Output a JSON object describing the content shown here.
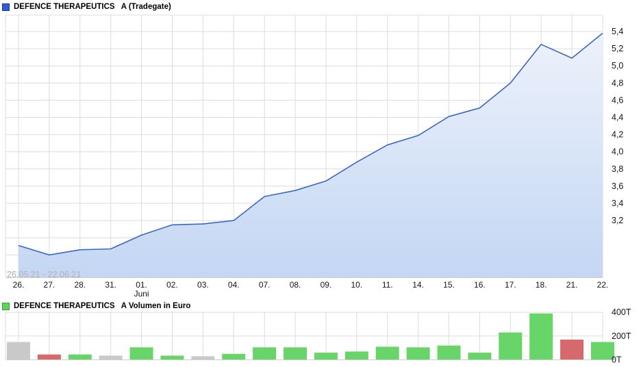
{
  "price_panel": {
    "title": "DEFENCE THERAPEUTICS   A (Tradegate)",
    "watermark": "26.05.21 - 22.06.21",
    "swatch_fill": "#2E5BD7",
    "swatch_border": "#1A3A99"
  },
  "volume_panel": {
    "title": "DEFENCE THERAPEUTICS   A Volumen in Euro",
    "swatch_fill": "#5FD35F",
    "swatch_border": "#2FA52F"
  },
  "chart_data": [
    {
      "type": "area",
      "title": "DEFENCE THERAPEUTICS A (Tradegate)",
      "x": [
        "26.",
        "27.",
        "28.",
        "31.",
        "01.",
        "02.",
        "03.",
        "04.",
        "07.",
        "08.",
        "09.",
        "10.",
        "11.",
        "14.",
        "15.",
        "16.",
        "17.",
        "18.",
        "21.",
        "22."
      ],
      "month_label": {
        "index": 4,
        "text": "Juni"
      },
      "values": [
        2.91,
        2.8,
        2.86,
        2.87,
        3.03,
        3.15,
        3.16,
        3.2,
        3.48,
        3.55,
        3.66,
        3.88,
        4.08,
        4.19,
        4.41,
        4.51,
        4.8,
        5.25,
        5.09,
        5.38
      ],
      "ylim": [
        2.6,
        5.58
      ],
      "y_ticks": [
        {
          "v": 5.4,
          "label": "5,4"
        },
        {
          "v": 5.2,
          "label": "5,2"
        },
        {
          "v": 5.0,
          "label": "5,0"
        },
        {
          "v": 4.8,
          "label": "4,8"
        },
        {
          "v": 4.6,
          "label": "4,6"
        },
        {
          "v": 4.4,
          "label": "4,4"
        },
        {
          "v": 4.2,
          "label": "4,2"
        },
        {
          "v": 4.0,
          "label": "4,0"
        },
        {
          "v": 3.8,
          "label": "3,8"
        },
        {
          "v": 3.6,
          "label": "3,6"
        },
        {
          "v": 3.4,
          "label": "3,4"
        },
        {
          "v": 3.2,
          "label": "3,2"
        }
      ],
      "grid": true,
      "legend_position": "top-left",
      "line_color": "#3867C8",
      "fill_top": "#EDF2FB",
      "fill_bottom": "#C3D6F3",
      "grid_color": "#dcdcdc"
    },
    {
      "type": "bar",
      "title": "DEFENCE THERAPEUTICS A Volumen in Euro",
      "unit": "T (thousand Euro)",
      "categories": [
        "26.",
        "27.",
        "28.",
        "31.",
        "01.",
        "02.",
        "03.",
        "04.",
        "07.",
        "08.",
        "09.",
        "10.",
        "11.",
        "14.",
        "15.",
        "16.",
        "17.",
        "18.",
        "21.",
        "22."
      ],
      "values_T": [
        150,
        45,
        45,
        35,
        105,
        35,
        30,
        50,
        105,
        105,
        60,
        70,
        110,
        105,
        120,
        60,
        230,
        390,
        170,
        150
      ],
      "bar_colors": [
        "gray",
        "red",
        "green",
        "gray",
        "green",
        "green",
        "gray",
        "green",
        "green",
        "green",
        "green",
        "green",
        "green",
        "green",
        "green",
        "green",
        "green",
        "green",
        "red",
        "green"
      ],
      "palette": {
        "green": "#68D568",
        "red": "#D5696B",
        "gray": "#C9C9C9"
      },
      "ylim": [
        0,
        400
      ],
      "y_ticks": [
        {
          "t": 400,
          "label": "400T"
        },
        {
          "t": 200,
          "label": "200T"
        },
        {
          "t": 0,
          "label": "0T"
        }
      ]
    }
  ]
}
